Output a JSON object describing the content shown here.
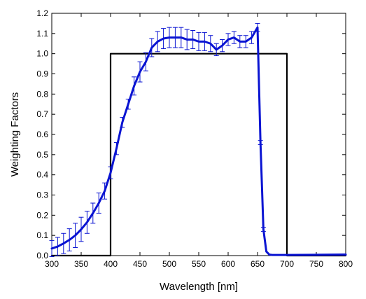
{
  "chart_data": {
    "type": "line",
    "title": "",
    "xlabel": "Wavelength [nm]",
    "ylabel": "Weighting Factors",
    "xlim": [
      300,
      800
    ],
    "ylim": [
      0,
      1.2
    ],
    "xticks": [
      300,
      350,
      400,
      450,
      500,
      550,
      600,
      650,
      700,
      750,
      800
    ],
    "yticks": [
      0.0,
      0.1,
      0.2,
      0.3,
      0.4,
      0.5,
      0.6,
      0.7,
      0.8,
      0.9,
      1.0,
      1.1,
      1.2
    ],
    "xtick_labels": [
      "300",
      "350",
      "400",
      "450",
      "500",
      "550",
      "600",
      "650",
      "700",
      "750",
      "800"
    ],
    "ytick_labels": [
      "0.0",
      "0.1",
      "0.2",
      "0.3",
      "0.4",
      "0.5",
      "0.6",
      "0.7",
      "0.8",
      "0.9",
      "1.0",
      "1.1",
      "1.2"
    ],
    "grid": false,
    "legend": "none",
    "series": [
      {
        "color": "#000000",
        "style": "step",
        "x": [
          300,
          400,
          400,
          700,
          700,
          800
        ],
        "y": [
          0,
          0,
          1.0,
          1.0,
          0,
          0
        ]
      },
      {
        "color": "#0a14d2",
        "style": "line-errorbars",
        "x": [
          300,
          310,
          320,
          330,
          340,
          350,
          360,
          370,
          380,
          390,
          400,
          410,
          420,
          430,
          440,
          450,
          460,
          470,
          480,
          490,
          500,
          510,
          520,
          530,
          540,
          550,
          560,
          570,
          580,
          590,
          600,
          610,
          620,
          630,
          640,
          650,
          655,
          660,
          665,
          670,
          675,
          680,
          700,
          750,
          800
        ],
        "y": [
          0.035,
          0.045,
          0.06,
          0.078,
          0.1,
          0.13,
          0.165,
          0.21,
          0.26,
          0.32,
          0.41,
          0.53,
          0.66,
          0.75,
          0.84,
          0.91,
          0.96,
          1.03,
          1.06,
          1.075,
          1.08,
          1.08,
          1.08,
          1.07,
          1.07,
          1.06,
          1.06,
          1.05,
          1.02,
          1.04,
          1.07,
          1.08,
          1.06,
          1.06,
          1.08,
          1.13,
          0.56,
          0.13,
          0.02,
          0.005,
          0.003,
          0.003,
          0.003,
          0.004,
          0.005
        ],
        "err": [
          0.04,
          0.045,
          0.05,
          0.055,
          0.06,
          0.06,
          0.055,
          0.05,
          0.05,
          0.04,
          0.03,
          0.03,
          0.025,
          0.025,
          0.045,
          0.05,
          0.045,
          0.045,
          0.05,
          0.05,
          0.05,
          0.05,
          0.05,
          0.05,
          0.045,
          0.045,
          0.045,
          0.04,
          0.03,
          0.03,
          0.03,
          0.03,
          0.03,
          0.03,
          0.03,
          0.02,
          0.01,
          0.01,
          0,
          0,
          0,
          0,
          0,
          0,
          0
        ]
      }
    ]
  }
}
